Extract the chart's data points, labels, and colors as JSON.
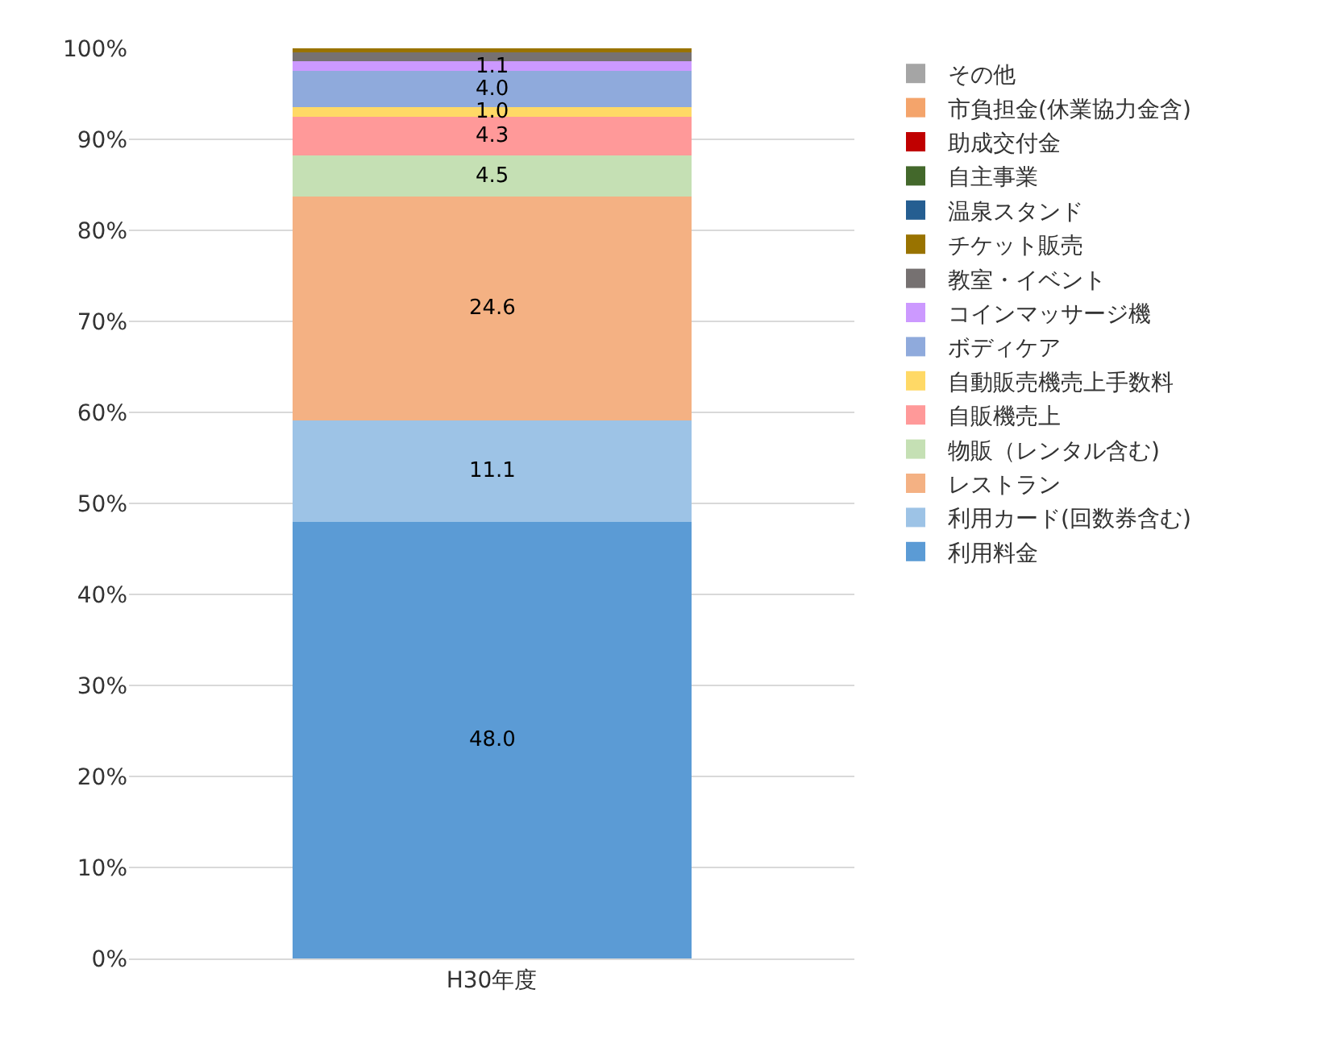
{
  "chart_data": {
    "type": "bar",
    "stacked": true,
    "categories": [
      "H30年度"
    ],
    "series": [
      {
        "name": "利用料金",
        "color": "#5b9bd5",
        "values": [
          48.0
        ],
        "value_labels": [
          "48.0"
        ]
      },
      {
        "name": "利用カード(回数券含む)",
        "color": "#9dc3e6",
        "values": [
          11.1
        ],
        "value_labels": [
          "11.1"
        ]
      },
      {
        "name": "レストラン",
        "color": "#f4b183",
        "values": [
          24.6
        ],
        "value_labels": [
          "24.6"
        ]
      },
      {
        "name": "物販（レンタル含む)",
        "color": "#c5e0b4",
        "values": [
          4.5
        ],
        "value_labels": [
          "4.5"
        ]
      },
      {
        "name": "自販機売上",
        "color": "#ff9999",
        "values": [
          4.3
        ],
        "value_labels": [
          "4.3"
        ]
      },
      {
        "name": "自動販売機売上手数料",
        "color": "#ffd966",
        "values": [
          1.0
        ],
        "value_labels": [
          "1.0"
        ]
      },
      {
        "name": "ボディケア",
        "color": "#8faadc",
        "values": [
          4.0
        ],
        "value_labels": [
          "4.0"
        ]
      },
      {
        "name": "コインマッサージ機",
        "color": "#cc99ff",
        "values": [
          1.1
        ],
        "value_labels": [
          "1.1"
        ]
      },
      {
        "name": "教室・イベント",
        "color": "#767171",
        "values": [
          1.0
        ],
        "value_labels": [
          null
        ]
      },
      {
        "name": "チケット販売",
        "color": "#997300",
        "values": [
          0.4
        ],
        "value_labels": [
          null
        ]
      },
      {
        "name": "温泉スタンド",
        "color": "#255e91",
        "values": [
          0
        ],
        "value_labels": [
          null
        ]
      },
      {
        "name": "自主事業",
        "color": "#43682b",
        "values": [
          0
        ],
        "value_labels": [
          null
        ]
      },
      {
        "name": "助成交付金",
        "color": "#c00000",
        "values": [
          0
        ],
        "value_labels": [
          null
        ]
      },
      {
        "name": "市負担金(休業協力金含)",
        "color": "#f4a46b",
        "values": [
          0
        ],
        "value_labels": [
          null
        ]
      },
      {
        "name": "その他",
        "color": "#a5a5a5",
        "values": [
          0
        ],
        "value_labels": [
          null
        ]
      }
    ],
    "ylim": [
      0,
      100
    ],
    "yticks": [
      {
        "value": 0,
        "label": "0%"
      },
      {
        "value": 10,
        "label": "10%"
      },
      {
        "value": 20,
        "label": "20%"
      },
      {
        "value": 30,
        "label": "30%"
      },
      {
        "value": 40,
        "label": "40%"
      },
      {
        "value": 50,
        "label": "50%"
      },
      {
        "value": 60,
        "label": "60%"
      },
      {
        "value": 70,
        "label": "70%"
      },
      {
        "value": 80,
        "label": "80%"
      },
      {
        "value": 90,
        "label": "90%"
      },
      {
        "value": 100,
        "label": "100%"
      }
    ],
    "grid": "y",
    "legend": "right"
  }
}
